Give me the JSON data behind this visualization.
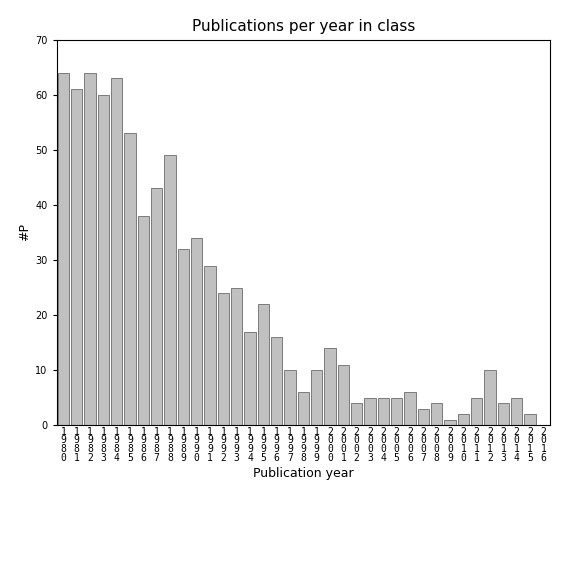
{
  "title": "Publications per year in class",
  "xlabel": "Publication year",
  "ylabel": "#P",
  "ylim": [
    0,
    70
  ],
  "yticks": [
    0,
    10,
    20,
    30,
    40,
    50,
    60,
    70
  ],
  "categories": [
    "1\n9\n8\n0",
    "1\n9\n8\n1",
    "1\n9\n8\n2",
    "1\n9\n8\n3",
    "1\n9\n8\n4",
    "1\n9\n8\n5",
    "1\n9\n8\n6",
    "1\n9\n8\n7",
    "1\n9\n8\n8",
    "1\n9\n8\n9",
    "1\n9\n9\n0",
    "1\n9\n9\n1",
    "1\n9\n9\n2",
    "1\n9\n9\n3",
    "1\n9\n9\n4",
    "1\n9\n9\n5",
    "1\n9\n9\n6",
    "1\n9\n9\n7",
    "1\n9\n9\n8",
    "1\n9\n9\n9",
    "2\n0\n0\n0",
    "2\n0\n0\n1",
    "2\n0\n0\n2",
    "2\n0\n0\n3",
    "2\n0\n0\n4",
    "2\n0\n0\n5",
    "2\n0\n0\n6",
    "2\n0\n0\n7",
    "2\n0\n0\n8",
    "2\n0\n0\n9",
    "2\n0\n1\n0",
    "2\n0\n1\n1",
    "2\n0\n1\n2",
    "2\n0\n1\n3",
    "2\n0\n1\n4",
    "2\n0\n1\n5",
    "2\n0\n1\n6"
  ],
  "values": [
    64,
    61,
    64,
    60,
    63,
    53,
    38,
    43,
    49,
    32,
    34,
    29,
    24,
    25,
    17,
    22,
    16,
    10,
    6,
    10,
    14,
    11,
    4,
    5,
    5,
    5,
    6,
    3,
    4,
    1,
    2,
    5,
    10,
    4,
    5,
    2,
    0
  ],
  "bar_color": "#c0c0c0",
  "bar_edgecolor": "#555555",
  "background_color": "#ffffff",
  "title_fontsize": 11,
  "axis_label_fontsize": 9,
  "tick_fontsize": 7,
  "bar_width": 0.85
}
